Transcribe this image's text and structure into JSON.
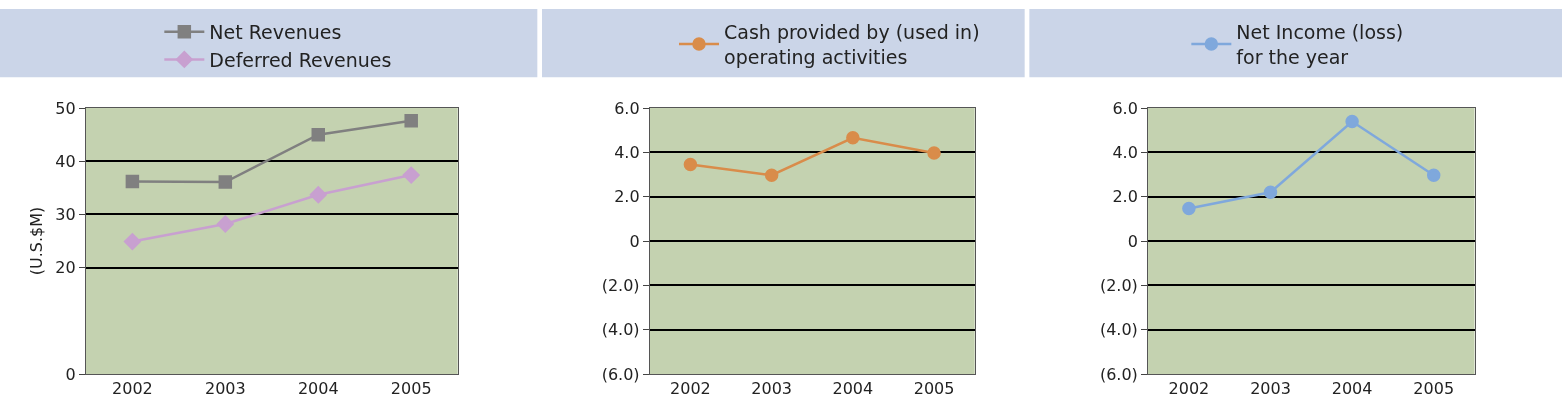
{
  "chart_data": [
    {
      "type": "line",
      "ylabel": "(U.S.$M)",
      "categories": [
        "2002",
        "2003",
        "2004",
        "2005"
      ],
      "series": [
        {
          "name": "Net Revenues",
          "color": "#808080",
          "marker": "square",
          "values": [
            36.2,
            36.1,
            45.0,
            47.6
          ]
        },
        {
          "name": "Deferred Revenues",
          "color": "#c8a0d0",
          "marker": "diamond",
          "values": [
            24.9,
            28.2,
            33.7,
            37.4
          ]
        }
      ],
      "ylim": [
        0,
        50
      ],
      "yticks": [
        0,
        20,
        30,
        40,
        50
      ],
      "grid": "y",
      "legend": "top"
    },
    {
      "type": "line",
      "categories": [
        "2002",
        "2003",
        "2004",
        "2005"
      ],
      "series": [
        {
          "name": "Cash provided by (used in)\noperating activities",
          "color": "#d98c4a",
          "marker": "circle",
          "values": [
            3.45,
            2.97,
            4.66,
            3.97
          ]
        }
      ],
      "ylim": [
        -6,
        6
      ],
      "yticks": [
        {
          "value": -6,
          "label": "(6.0)"
        },
        {
          "value": -4,
          "label": "(4.0)"
        },
        {
          "value": -2,
          "label": "(2.0)"
        },
        0,
        {
          "value": 2,
          "label": "2.0"
        },
        {
          "value": 4,
          "label": "4.0"
        },
        {
          "value": 6,
          "label": "6.0"
        }
      ],
      "grid": "y",
      "legend": "top"
    },
    {
      "type": "line",
      "categories": [
        "2002",
        "2003",
        "2004",
        "2005"
      ],
      "series": [
        {
          "name": "Net Income (loss)\nfor the year",
          "color": "#7fa8dc",
          "marker": "circle",
          "values": [
            1.47,
            2.2,
            5.39,
            2.97
          ]
        }
      ],
      "ylim": [
        -6,
        6
      ],
      "yticks": [
        {
          "value": -6,
          "label": "(6.0)"
        },
        {
          "value": -4,
          "label": "(4.0)"
        },
        {
          "value": -2,
          "label": "(2.0)"
        },
        0,
        {
          "value": 2,
          "label": "2.0"
        },
        {
          "value": 4,
          "label": "4.0"
        },
        {
          "value": 6,
          "label": "6.0"
        }
      ],
      "grid": "y",
      "legend": "top"
    }
  ]
}
